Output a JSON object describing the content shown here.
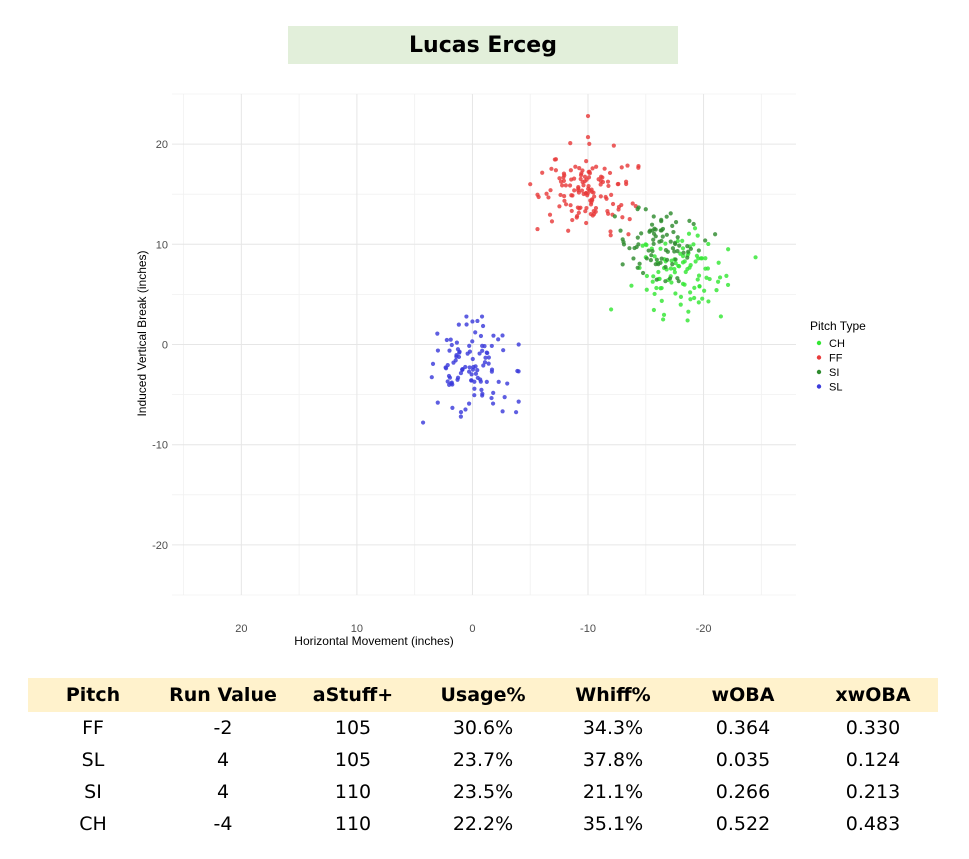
{
  "pitcher": {
    "name": "Lucas Erceg"
  },
  "chart_data": {
    "type": "scatter",
    "xlabel": "Horizontal Movement (inches)",
    "ylabel": "Induced Vertical Break (inches)",
    "xlim": [
      26,
      -28
    ],
    "ylim": [
      -25,
      25
    ],
    "x_ticks": [
      20,
      10,
      0,
      -10,
      -20
    ],
    "y_ticks": [
      20,
      10,
      0,
      -10,
      -20
    ],
    "x_axis_reversed": true,
    "grid": true,
    "legend": {
      "title": "Pitch Type",
      "position": "right"
    },
    "series": [
      {
        "name": "CH",
        "color": "#33e633",
        "count": 95,
        "center": [
          -18.0,
          7.0
        ],
        "spread": [
          2.0,
          2.0
        ],
        "extra_points": [
          [
            -24.5,
            8.7
          ],
          [
            -12.0,
            3.5
          ],
          [
            -21.5,
            2.8
          ],
          [
            -16.5,
            2.5
          ]
        ]
      },
      {
        "name": "FF",
        "color": "#e83b3b",
        "count": 130,
        "center": [
          -10.0,
          15.5
        ],
        "spread": [
          1.9,
          2.0
        ],
        "extra_points": [
          [
            -10.0,
            22.8
          ],
          [
            -5.0,
            16.0
          ],
          [
            -10.0,
            20.7
          ],
          [
            -13.5,
            11.0
          ]
        ]
      },
      {
        "name": "SI",
        "color": "#2e8b2e",
        "count": 80,
        "center": [
          -16.0,
          10.0
        ],
        "spread": [
          1.8,
          1.6
        ],
        "extra_points": [
          [
            -13.0,
            8.0
          ],
          [
            -15.0,
            13.5
          ],
          [
            -21.0,
            11.0
          ]
        ]
      },
      {
        "name": "SL",
        "color": "#3b3bdb",
        "count": 100,
        "center": [
          0.0,
          -2.5
        ],
        "spread": [
          1.9,
          2.3
        ],
        "extra_points": [
          [
            0.0,
            2.3
          ],
          [
            -4.0,
            0.0
          ],
          [
            -4.0,
            -5.7
          ],
          [
            3.0,
            -5.8
          ],
          [
            1.0,
            -7.2
          ]
        ]
      }
    ]
  },
  "table": {
    "headers": [
      "Pitch",
      "Run Value",
      "aStuff+",
      "Usage%",
      "Whiff%",
      "wOBA",
      "xwOBA"
    ],
    "rows": [
      [
        "FF",
        "-2",
        "105",
        "30.6%",
        "34.3%",
        "0.364",
        "0.330"
      ],
      [
        "SL",
        "4",
        "105",
        "23.7%",
        "37.8%",
        "0.035",
        "0.124"
      ],
      [
        "SI",
        "4",
        "110",
        "23.5%",
        "21.1%",
        "0.266",
        "0.213"
      ],
      [
        "CH",
        "-4",
        "110",
        "22.2%",
        "35.1%",
        "0.522",
        "0.483"
      ]
    ]
  }
}
